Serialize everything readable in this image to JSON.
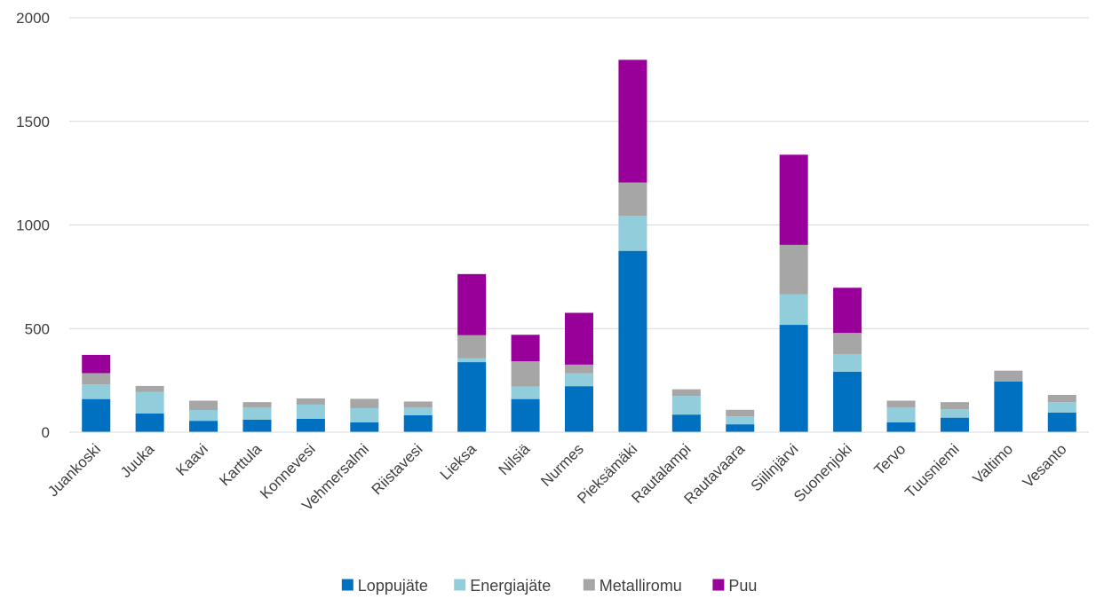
{
  "chart_data": {
    "type": "bar",
    "stacked": true,
    "title": "",
    "xlabel": "",
    "ylabel": "",
    "ylim": [
      0,
      2000
    ],
    "yticks": [
      0,
      500,
      1000,
      1500,
      2000
    ],
    "grid": true,
    "legend_position": "bottom",
    "categories": [
      "Juankoski",
      "Juuka",
      "Kaavi",
      "Karttula",
      "Konnevesi",
      "Vehmersalmi",
      "Riistavesi",
      "Lieksa",
      "Nilsiä",
      "Nurmes",
      "Pieksämäki",
      "Rautalampi",
      "Rautavaara",
      "Siilinjärvi",
      "Suonenjoki",
      "Tervo",
      "Tuusniemi",
      "Valtimo",
      "Vesanto"
    ],
    "series": [
      {
        "name": "Loppujäte",
        "color": "#0070C0",
        "values": [
          160,
          90,
          55,
          60,
          65,
          48,
          82,
          338,
          160,
          222,
          875,
          85,
          38,
          518,
          292,
          48,
          70,
          245,
          95
        ]
      },
      {
        "name": "Energiajäte",
        "color": "#92CDDC",
        "values": [
          70,
          105,
          52,
          60,
          68,
          68,
          38,
          18,
          60,
          62,
          170,
          90,
          38,
          148,
          85,
          72,
          40,
          0,
          50
        ]
      },
      {
        "name": "Metalliromu",
        "color": "#A6A6A6",
        "values": [
          55,
          28,
          45,
          25,
          30,
          45,
          28,
          112,
          122,
          42,
          160,
          32,
          32,
          238,
          102,
          32,
          35,
          52,
          35
        ]
      },
      {
        "name": "Puu",
        "color": "#990099",
        "values": [
          88,
          0,
          0,
          0,
          0,
          0,
          0,
          295,
          128,
          250,
          592,
          0,
          0,
          435,
          218,
          0,
          0,
          0,
          0
        ]
      }
    ]
  }
}
